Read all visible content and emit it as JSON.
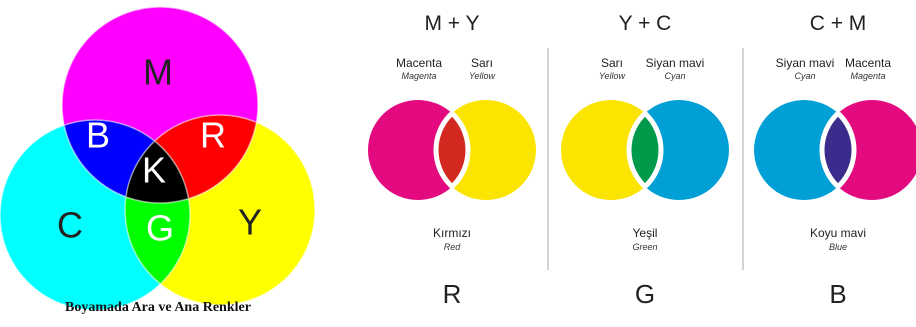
{
  "main_diagram": {
    "caption": "Boyamada Ara ve Ana Renkler",
    "labels": {
      "m": "M",
      "c": "C",
      "y": "Y",
      "b": "B",
      "r": "R",
      "g": "G",
      "k": "K"
    },
    "colors": {
      "magenta": "#ff00ff",
      "cyan": "#00ffff",
      "yellow": "#ffff00",
      "blue": "#0000ff",
      "red": "#ff0000",
      "green": "#00ff00",
      "black": "#000000"
    }
  },
  "panels": [
    {
      "title": "M + Y",
      "left": {
        "name": "Macenta",
        "en": "Magenta",
        "color": "#e3097f"
      },
      "right": {
        "name": "Sarı",
        "en": "Yellow",
        "color": "#fae400"
      },
      "mix": {
        "name": "Kırmızı",
        "en": "Red",
        "color": "#d3281f"
      },
      "letter": "R"
    },
    {
      "title": "Y + C",
      "left": {
        "name": "Sarı",
        "en": "Yellow",
        "color": "#fae400"
      },
      "right": {
        "name": "Siyan mavi",
        "en": "Cyan",
        "color": "#00a0d6"
      },
      "mix": {
        "name": "Yeşil",
        "en": "Green",
        "color": "#009a4a"
      },
      "letter": "G"
    },
    {
      "title": "C + M",
      "left": {
        "name": "Siyan mavi",
        "en": "Cyan",
        "color": "#00a0d6"
      },
      "right": {
        "name": "Macenta",
        "en": "Magenta",
        "color": "#e3097f"
      },
      "mix": {
        "name": "Koyu mavi",
        "en": "Blue",
        "color": "#3a2c8c"
      },
      "letter": "B"
    }
  ]
}
